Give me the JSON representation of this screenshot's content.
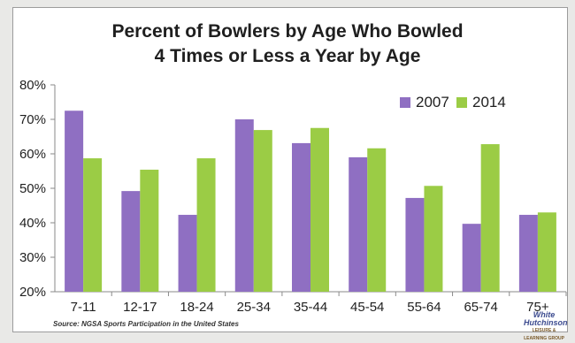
{
  "chart_data": {
    "type": "bar",
    "title_lines": [
      "Percent of Bowlers by Age Who Bowled",
      "4 Times or Less a Year by Age"
    ],
    "categories": [
      "7-11",
      "12-17",
      "18-24",
      "25-34",
      "35-44",
      "45-54",
      "55-64",
      "65-74",
      "75+"
    ],
    "series": [
      {
        "name": "2007",
        "color": "#8f6fc2",
        "values": [
          72.5,
          49.2,
          42.3,
          70.0,
          63.1,
          59.0,
          47.2,
          39.7,
          42.3
        ]
      },
      {
        "name": "2014",
        "color": "#9bcc45",
        "values": [
          58.7,
          55.4,
          58.7,
          66.9,
          67.5,
          61.6,
          50.7,
          62.8,
          43.0
        ]
      }
    ],
    "ylim": [
      20,
      80
    ],
    "yticks": [
      "20%",
      "30%",
      "40%",
      "50%",
      "60%",
      "70%",
      "80%"
    ],
    "ytick_values": [
      20,
      30,
      40,
      50,
      60,
      70,
      80
    ],
    "grid": false,
    "legend": "top-right"
  },
  "source": "Source: NGSA Sports Participation in the United States",
  "logo": {
    "line1": "White",
    "line2": "Hutchinson",
    "tagline": "LEISURE & LEARNING GROUP"
  }
}
